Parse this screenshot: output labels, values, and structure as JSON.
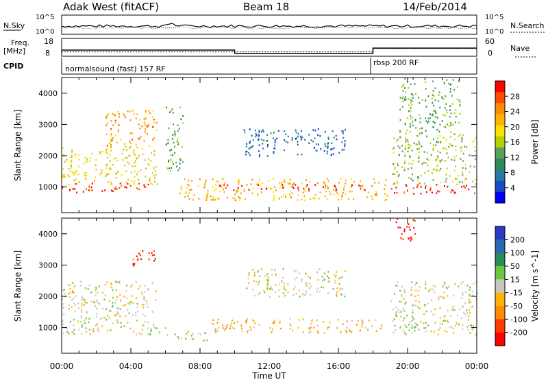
{
  "header": {
    "station": "Adak West (fitACF)",
    "beam": "Beam 18",
    "date": "14/Feb/2014"
  },
  "labels": {
    "nsky": "N.Sky",
    "nsky_ticks": [
      "10^5",
      "10^0"
    ],
    "nsearch": "N.Search",
    "nsearch_ticks": [
      "10^5",
      "10^0"
    ],
    "freq": "Freq.",
    "mhz": "[MHz]",
    "freq_ticks": [
      "18",
      "8"
    ],
    "nave": "Nave",
    "nave_ticks": [
      "60",
      "0"
    ],
    "cpid": "CPID",
    "cpid_1": "normalsound (fast) 157 RF",
    "cpid_2": "rbsp 200 RF"
  },
  "colorbars": {
    "power": {
      "label": "Power [dB]",
      "ticks": [
        "28",
        "24",
        "20",
        "16",
        "12",
        "8",
        "4"
      ],
      "colors": [
        "#ff0000",
        "#ff4a00",
        "#ff8c00",
        "#ffb400",
        "#ffe000",
        "#b4d200",
        "#5aa05a",
        "#2a8a5a",
        "#2a7aa0",
        "#1a4ac8",
        "#0000ff"
      ]
    },
    "velocity": {
      "label": "Velocity [m s^-1]",
      "ticks": [
        "200",
        "100",
        "50",
        "15",
        "-15",
        "-50",
        "-100",
        "-200"
      ],
      "colors": [
        "#2a3ac8",
        "#2a6ab4",
        "#2a8a5a",
        "#6ac83a",
        "#c8c8c0",
        "#ffb400",
        "#ff8c00",
        "#ff3a00",
        "#ff0000"
      ]
    }
  },
  "chart_data": [
    {
      "type": "heatmap",
      "title": "Power",
      "ylabel": "Slant Range [km]",
      "xlabel": "",
      "xlim": [
        "00:00",
        "24:00"
      ],
      "ylim": [
        180,
        4500
      ],
      "yticks": [
        1000,
        2000,
        3000,
        4000
      ],
      "colorbar_range": [
        0,
        30
      ],
      "regions": [
        {
          "t0": 0,
          "t1": 5.0,
          "r0": 850,
          "r1": 1150,
          "value": 28
        },
        {
          "t0": 0,
          "t1": 5.5,
          "r0": 1100,
          "r1": 2300,
          "value": 18
        },
        {
          "t0": 2.5,
          "t1": 5.5,
          "r0": 2300,
          "r1": 3500,
          "value": 22
        },
        {
          "t0": 6.0,
          "t1": 7.0,
          "r0": 1500,
          "r1": 3600,
          "value": 12
        },
        {
          "t0": 6.8,
          "t1": 18.8,
          "r0": 600,
          "r1": 1300,
          "value": 20
        },
        {
          "t0": 9.0,
          "t1": 17.5,
          "r0": 900,
          "r1": 1100,
          "value": 28
        },
        {
          "t0": 10.5,
          "t1": 16.5,
          "r0": 2000,
          "r1": 2900,
          "value": 6
        },
        {
          "t0": 19.0,
          "t1": 24.0,
          "r0": 800,
          "r1": 1100,
          "value": 28
        },
        {
          "t0": 19.0,
          "t1": 24.0,
          "r0": 1100,
          "r1": 2700,
          "value": 14
        },
        {
          "t0": 19.5,
          "t1": 23.0,
          "r0": 2700,
          "r1": 4500,
          "value": 12
        }
      ]
    },
    {
      "type": "heatmap",
      "title": "Velocity",
      "ylabel": "Slant Range [km]",
      "xlabel": "Time UT",
      "xlim": [
        "00:00",
        "24:00"
      ],
      "xticks": [
        "00:00",
        "04:00",
        "08:00",
        "12:00",
        "16:00",
        "20:00",
        "00:00"
      ],
      "ylim": [
        180,
        4500
      ],
      "yticks": [
        1000,
        2000,
        3000,
        4000
      ],
      "colorbar_range": [
        -250,
        250
      ],
      "regions": [
        {
          "t0": 0,
          "t1": 6.0,
          "r0": 800,
          "r1": 1150,
          "value": 0
        },
        {
          "t0": 0,
          "t1": 5.5,
          "r0": 1150,
          "r1": 2500,
          "value": 0
        },
        {
          "t0": 4.0,
          "t1": 5.5,
          "r0": 3000,
          "r1": 3500,
          "value": -200
        },
        {
          "t0": 6.0,
          "t1": 8.5,
          "r0": 600,
          "r1": 900,
          "value": 40
        },
        {
          "t0": 8.5,
          "t1": 18.5,
          "r0": 850,
          "r1": 1300,
          "value": -60
        },
        {
          "t0": 10.5,
          "t1": 16.5,
          "r0": 2000,
          "r1": 2900,
          "value": 0
        },
        {
          "t0": 19.0,
          "t1": 24.0,
          "r0": 800,
          "r1": 2500,
          "value": 0
        },
        {
          "t0": 19.2,
          "t1": 20.5,
          "r0": 3800,
          "r1": 4500,
          "value": -200
        }
      ]
    }
  ],
  "freq_trace": [
    {
      "t": 0,
      "mhz": 11.2
    },
    {
      "t": 10.0,
      "mhz": 11.2
    },
    {
      "t": 10.0,
      "mhz": 9.0
    },
    {
      "t": 18.0,
      "mhz": 9.0
    },
    {
      "t": 18.0,
      "mhz": 12.5
    },
    {
      "t": 24.0,
      "mhz": 12.5
    }
  ],
  "nave_trace": [
    {
      "t": 0,
      "v": 12
    },
    {
      "t": 18.0,
      "v": 12
    },
    {
      "t": 18.0,
      "v": 25
    },
    {
      "t": 24.0,
      "v": 25
    }
  ]
}
